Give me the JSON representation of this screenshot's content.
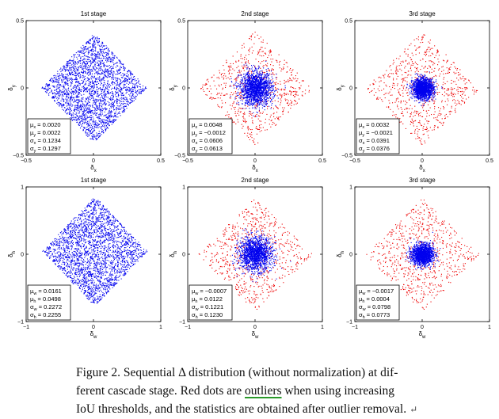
{
  "figure": {
    "caption_lines": [
      "Figure 2. Sequential Δ distribution (without normalization) at dif-",
      "ferent cascade stage. Red dots are ",
      "outliers",
      " when using increasing",
      "IoU thresholds, and the statistics are obtained after outlier removal."
    ],
    "return_glyph": "↵"
  },
  "chart_data": [
    {
      "type": "scatter",
      "row": "top",
      "title": "1st stage",
      "xlabel": "δx",
      "ylabel": "δy",
      "xlim": [
        -0.5,
        0.5
      ],
      "ylim": [
        -0.5,
        0.5
      ],
      "xticks": [
        "−0.5",
        "0",
        "0.5"
      ],
      "yticks": [
        "0.5",
        "0",
        "−0.5"
      ],
      "series": [
        {
          "color": "#0000ee",
          "distribution": {
            "center": [
              0.002,
              0.0022
            ],
            "sd": [
              0.1234,
              0.1297
            ],
            "shape": "diamond"
          }
        }
      ],
      "stats": [
        "μx = 0.0020",
        "μy = 0.0022",
        "σx = 0.1234",
        "σy = 0.1297"
      ]
    },
    {
      "type": "scatter",
      "row": "top",
      "title": "2nd stage",
      "xlabel": "δx",
      "ylabel": "δy",
      "xlim": [
        -0.5,
        0.5
      ],
      "ylim": [
        -0.5,
        0.5
      ],
      "xticks": [
        "−0.5",
        "0",
        "0.5"
      ],
      "yticks": [
        "0.5",
        "0",
        "−0.5"
      ],
      "series": [
        {
          "color": "#ee0000",
          "distribution": {
            "shape": "diamond-spread"
          }
        },
        {
          "color": "#0000ee",
          "distribution": {
            "center": [
              0.0048,
              -0.0012
            ],
            "sd": [
              0.0606,
              0.0613
            ],
            "shape": "core"
          }
        }
      ],
      "stats": [
        "μx = 0.0048",
        "μy = −0.0012",
        "σx = 0.0606",
        "σy = 0.0613"
      ]
    },
    {
      "type": "scatter",
      "row": "top",
      "title": "3rd stage",
      "xlabel": "δx",
      "ylabel": "δy",
      "xlim": [
        -0.5,
        0.5
      ],
      "ylim": [
        -0.5,
        0.5
      ],
      "xticks": [
        "−0.5",
        "0",
        "0.5"
      ],
      "yticks": [
        "0.5",
        "0",
        "−0.5"
      ],
      "series": [
        {
          "color": "#ee0000",
          "distribution": {
            "shape": "diamond-spread"
          }
        },
        {
          "color": "#0000ee",
          "distribution": {
            "center": [
              0.0032,
              -0.0021
            ],
            "sd": [
              0.0391,
              0.0376
            ],
            "shape": "core"
          }
        }
      ],
      "stats": [
        "μx = 0.0032",
        "μy = −0.0021",
        "σx = 0.0391",
        "σy = 0.0376"
      ]
    },
    {
      "type": "scatter",
      "row": "bottom",
      "title": "1st stage",
      "xlabel": "δw",
      "ylabel": "δh",
      "xlim": [
        -1,
        1
      ],
      "ylim": [
        -1,
        1
      ],
      "xticks": [
        "−1",
        "0",
        "1"
      ],
      "yticks": [
        "1",
        "0",
        "−1"
      ],
      "series": [
        {
          "color": "#0000ee",
          "distribution": {
            "center": [
              0.0161,
              0.0498
            ],
            "sd": [
              0.2272,
              0.2255
            ],
            "shape": "diamond"
          }
        }
      ],
      "stats": [
        "μw = 0.0161",
        "μh = 0.0498",
        "σw = 0.2272",
        "σh = 0.2255"
      ]
    },
    {
      "type": "scatter",
      "row": "bottom",
      "title": "2nd stage",
      "xlabel": "δw",
      "ylabel": "δh",
      "xlim": [
        -1,
        1
      ],
      "ylim": [
        -1,
        1
      ],
      "xticks": [
        "−1",
        "0",
        "1"
      ],
      "yticks": [
        "1",
        "0",
        "−1"
      ],
      "series": [
        {
          "color": "#ee0000",
          "distribution": {
            "shape": "diamond-spread"
          }
        },
        {
          "color": "#0000ee",
          "distribution": {
            "center": [
              -0.0007,
              0.0122
            ],
            "sd": [
              0.1221,
              0.123
            ],
            "shape": "core"
          }
        }
      ],
      "stats": [
        "μw = −0.0007",
        "μh = 0.0122",
        "σw = 0.1221",
        "σh = 0.1230"
      ]
    },
    {
      "type": "scatter",
      "row": "bottom",
      "title": "3rd stage",
      "xlabel": "δw",
      "ylabel": "δh",
      "xlim": [
        -1,
        1
      ],
      "ylim": [
        -1,
        1
      ],
      "xticks": [
        "−1",
        "0",
        "1"
      ],
      "yticks": [
        "1",
        "0",
        "−1"
      ],
      "series": [
        {
          "color": "#ee0000",
          "distribution": {
            "shape": "diamond-spread"
          }
        },
        {
          "color": "#0000ee",
          "distribution": {
            "center": [
              -0.0017,
              0.0004
            ],
            "sd": [
              0.0798,
              0.0773
            ],
            "shape": "core"
          }
        }
      ],
      "stats": [
        "μw = −0.0017",
        "μh = 0.0004",
        "σw = 0.0798",
        "σh = 0.0773"
      ]
    }
  ]
}
